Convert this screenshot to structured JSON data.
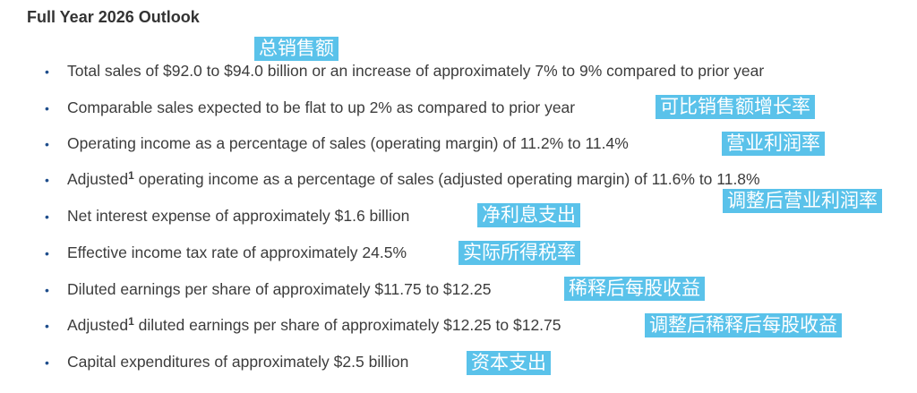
{
  "title": "Full Year 2026 Outlook",
  "bullet_char": "•",
  "superscript": "1",
  "items": [
    {
      "pre": "",
      "text": "Total sales of $92.0 to $94.0 billion or an increase of approximately 7% to 9% compared to prior year"
    },
    {
      "pre": "",
      "text": "Comparable sales expected to be flat to up 2% as compared to prior year"
    },
    {
      "pre": "",
      "text": "Operating income as a percentage of sales (operating margin) of 11.2% to 11.4%"
    },
    {
      "pre": "Adjusted",
      "text": " operating income as a percentage of sales (adjusted operating margin) of 11.6% to 11.8%"
    },
    {
      "pre": "",
      "text": "Net interest expense of approximately $1.6 billion"
    },
    {
      "pre": "",
      "text": "Effective income tax rate of approximately 24.5%"
    },
    {
      "pre": "",
      "text": "Diluted earnings per share of approximately $11.75 to $12.25"
    },
    {
      "pre": "Adjusted",
      "text": " diluted earnings per share of approximately $12.25 to $12.75"
    },
    {
      "pre": "",
      "text": "Capital expenditures of approximately $2.5 billion"
    }
  ],
  "annotations": [
    "总销售额",
    "可比销售额增长率",
    "营业利润率",
    "调整后营业利润率",
    "净利息支出",
    "实际所得税率",
    "稀释后每股收益",
    "调整后稀释后每股收益",
    "资本支出"
  ],
  "colors": {
    "annotation_bg": "#5ac2ea",
    "bullet": "#1f4e8c",
    "text": "#3c3c3c"
  }
}
